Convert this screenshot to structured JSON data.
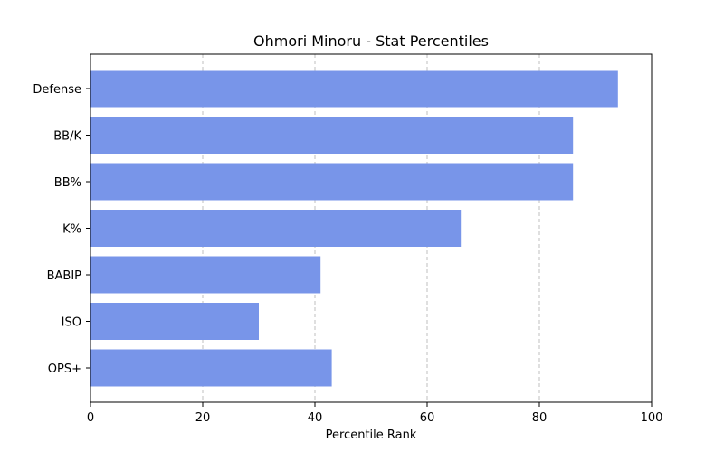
{
  "chart_data": {
    "type": "bar",
    "orientation": "horizontal",
    "title": "Ohmori Minoru - Stat Percentiles",
    "xlabel": "Percentile Rank",
    "ylabel": "",
    "xlim": [
      0,
      100
    ],
    "xticks": [
      0,
      20,
      40,
      60,
      80,
      100
    ],
    "categories": [
      "Defense",
      "BB/K",
      "BB%",
      "K%",
      "BABIP",
      "ISO",
      "OPS+"
    ],
    "values": [
      94,
      86,
      86,
      66,
      41,
      30,
      43
    ],
    "bar_color": "#7895e9",
    "grid": "x-axis dashed"
  }
}
